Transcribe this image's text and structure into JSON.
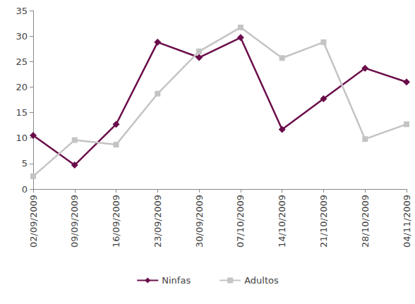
{
  "chart_data": {
    "type": "line",
    "categories": [
      "02/09/2009",
      "09/09/2009",
      "16/09/2009",
      "23/09/2009",
      "30/09/2009",
      "07/10/2009",
      "14/10/2009",
      "21/10/2009",
      "28/10/2009",
      "04/11/2009"
    ],
    "series": [
      {
        "name": "Ninfas",
        "color": "#6a0d4a",
        "marker": "diamond",
        "values": [
          10.5,
          4.7,
          12.7,
          28.8,
          25.8,
          29.7,
          11.7,
          17.7,
          23.7,
          21
        ]
      },
      {
        "name": "Adultos",
        "color": "#c4c4c4",
        "marker": "square",
        "values": [
          2.5,
          9.6,
          8.7,
          18.7,
          27,
          31.7,
          25.7,
          28.8,
          9.8,
          12.7
        ]
      }
    ],
    "ylim": [
      0,
      35
    ],
    "yticks": [
      0,
      5,
      10,
      15,
      20,
      25,
      30,
      35
    ],
    "grid": false,
    "legend": "bottom"
  }
}
